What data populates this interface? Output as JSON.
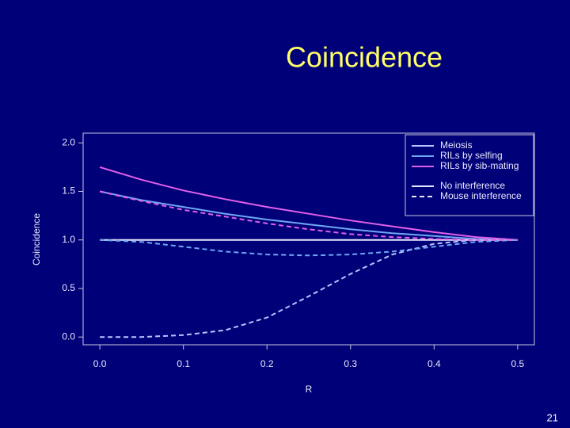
{
  "title": "Coincidence",
  "page_number": "21",
  "chart_data": {
    "type": "line",
    "x_label": "R",
    "y_label": "Coincidence",
    "x": [
      0,
      0.05,
      0.1,
      0.15,
      0.2,
      0.25,
      0.3,
      0.35,
      0.4,
      0.45,
      0.5
    ],
    "series": [
      {
        "color": "#e6e9ff",
        "dashed": false,
        "values": [
          1,
          1,
          1,
          1,
          1,
          1,
          1,
          1,
          1,
          1,
          1
        ]
      },
      {
        "color": "#6fa6f2",
        "dashed": false,
        "values": [
          1.5,
          1.41,
          1.34,
          1.27,
          1.21,
          1.16,
          1.11,
          1.07,
          1.04,
          1.01,
          1.0
        ]
      },
      {
        "color": "#e15fe8",
        "dashed": false,
        "values": [
          1.75,
          1.62,
          1.51,
          1.42,
          1.34,
          1.27,
          1.2,
          1.14,
          1.08,
          1.03,
          1.0
        ]
      },
      {
        "color": "#b8c4ff",
        "dashed": true,
        "values": [
          0,
          0,
          0.02,
          0.07,
          0.2,
          0.42,
          0.65,
          0.85,
          0.96,
          1.0,
          1.0
        ]
      },
      {
        "color": "#6fa6f2",
        "dashed": true,
        "values": [
          1.0,
          0.98,
          0.93,
          0.88,
          0.85,
          0.84,
          0.85,
          0.88,
          0.93,
          0.98,
          1.0
        ]
      },
      {
        "color": "#e15fe8",
        "dashed": true,
        "values": [
          1.5,
          1.4,
          1.31,
          1.24,
          1.17,
          1.11,
          1.06,
          1.03,
          1.01,
          1.0,
          1.0
        ]
      }
    ],
    "legend": [
      {
        "name": "Meiosis",
        "color": "#b8c4ff",
        "dashed": false
      },
      {
        "name": "RILs by selfing",
        "color": "#6fa6f2",
        "dashed": false
      },
      {
        "name": "RILs by sib-mating",
        "color": "#e15fe8",
        "dashed": false
      },
      {
        "name": "No interference",
        "color": "#e6e9ff",
        "dashed": false
      },
      {
        "name": "Mouse interference",
        "color": "#e6e9ff",
        "dashed": true
      }
    ],
    "legend_position": "upper right",
    "xlim": [
      -0.02,
      0.52
    ],
    "ylim": [
      -0.08,
      2.1
    ],
    "xticks": [
      {
        "value": 0,
        "label": "0.0"
      },
      0.1,
      0.2,
      0.3,
      0.4,
      0.5
    ],
    "yticks": [
      {
        "value": 0,
        "label": "0.0"
      },
      0.5,
      {
        "value": 1,
        "label": "1.0"
      },
      1.5,
      {
        "value": 2,
        "label": "2.0"
      }
    ]
  }
}
